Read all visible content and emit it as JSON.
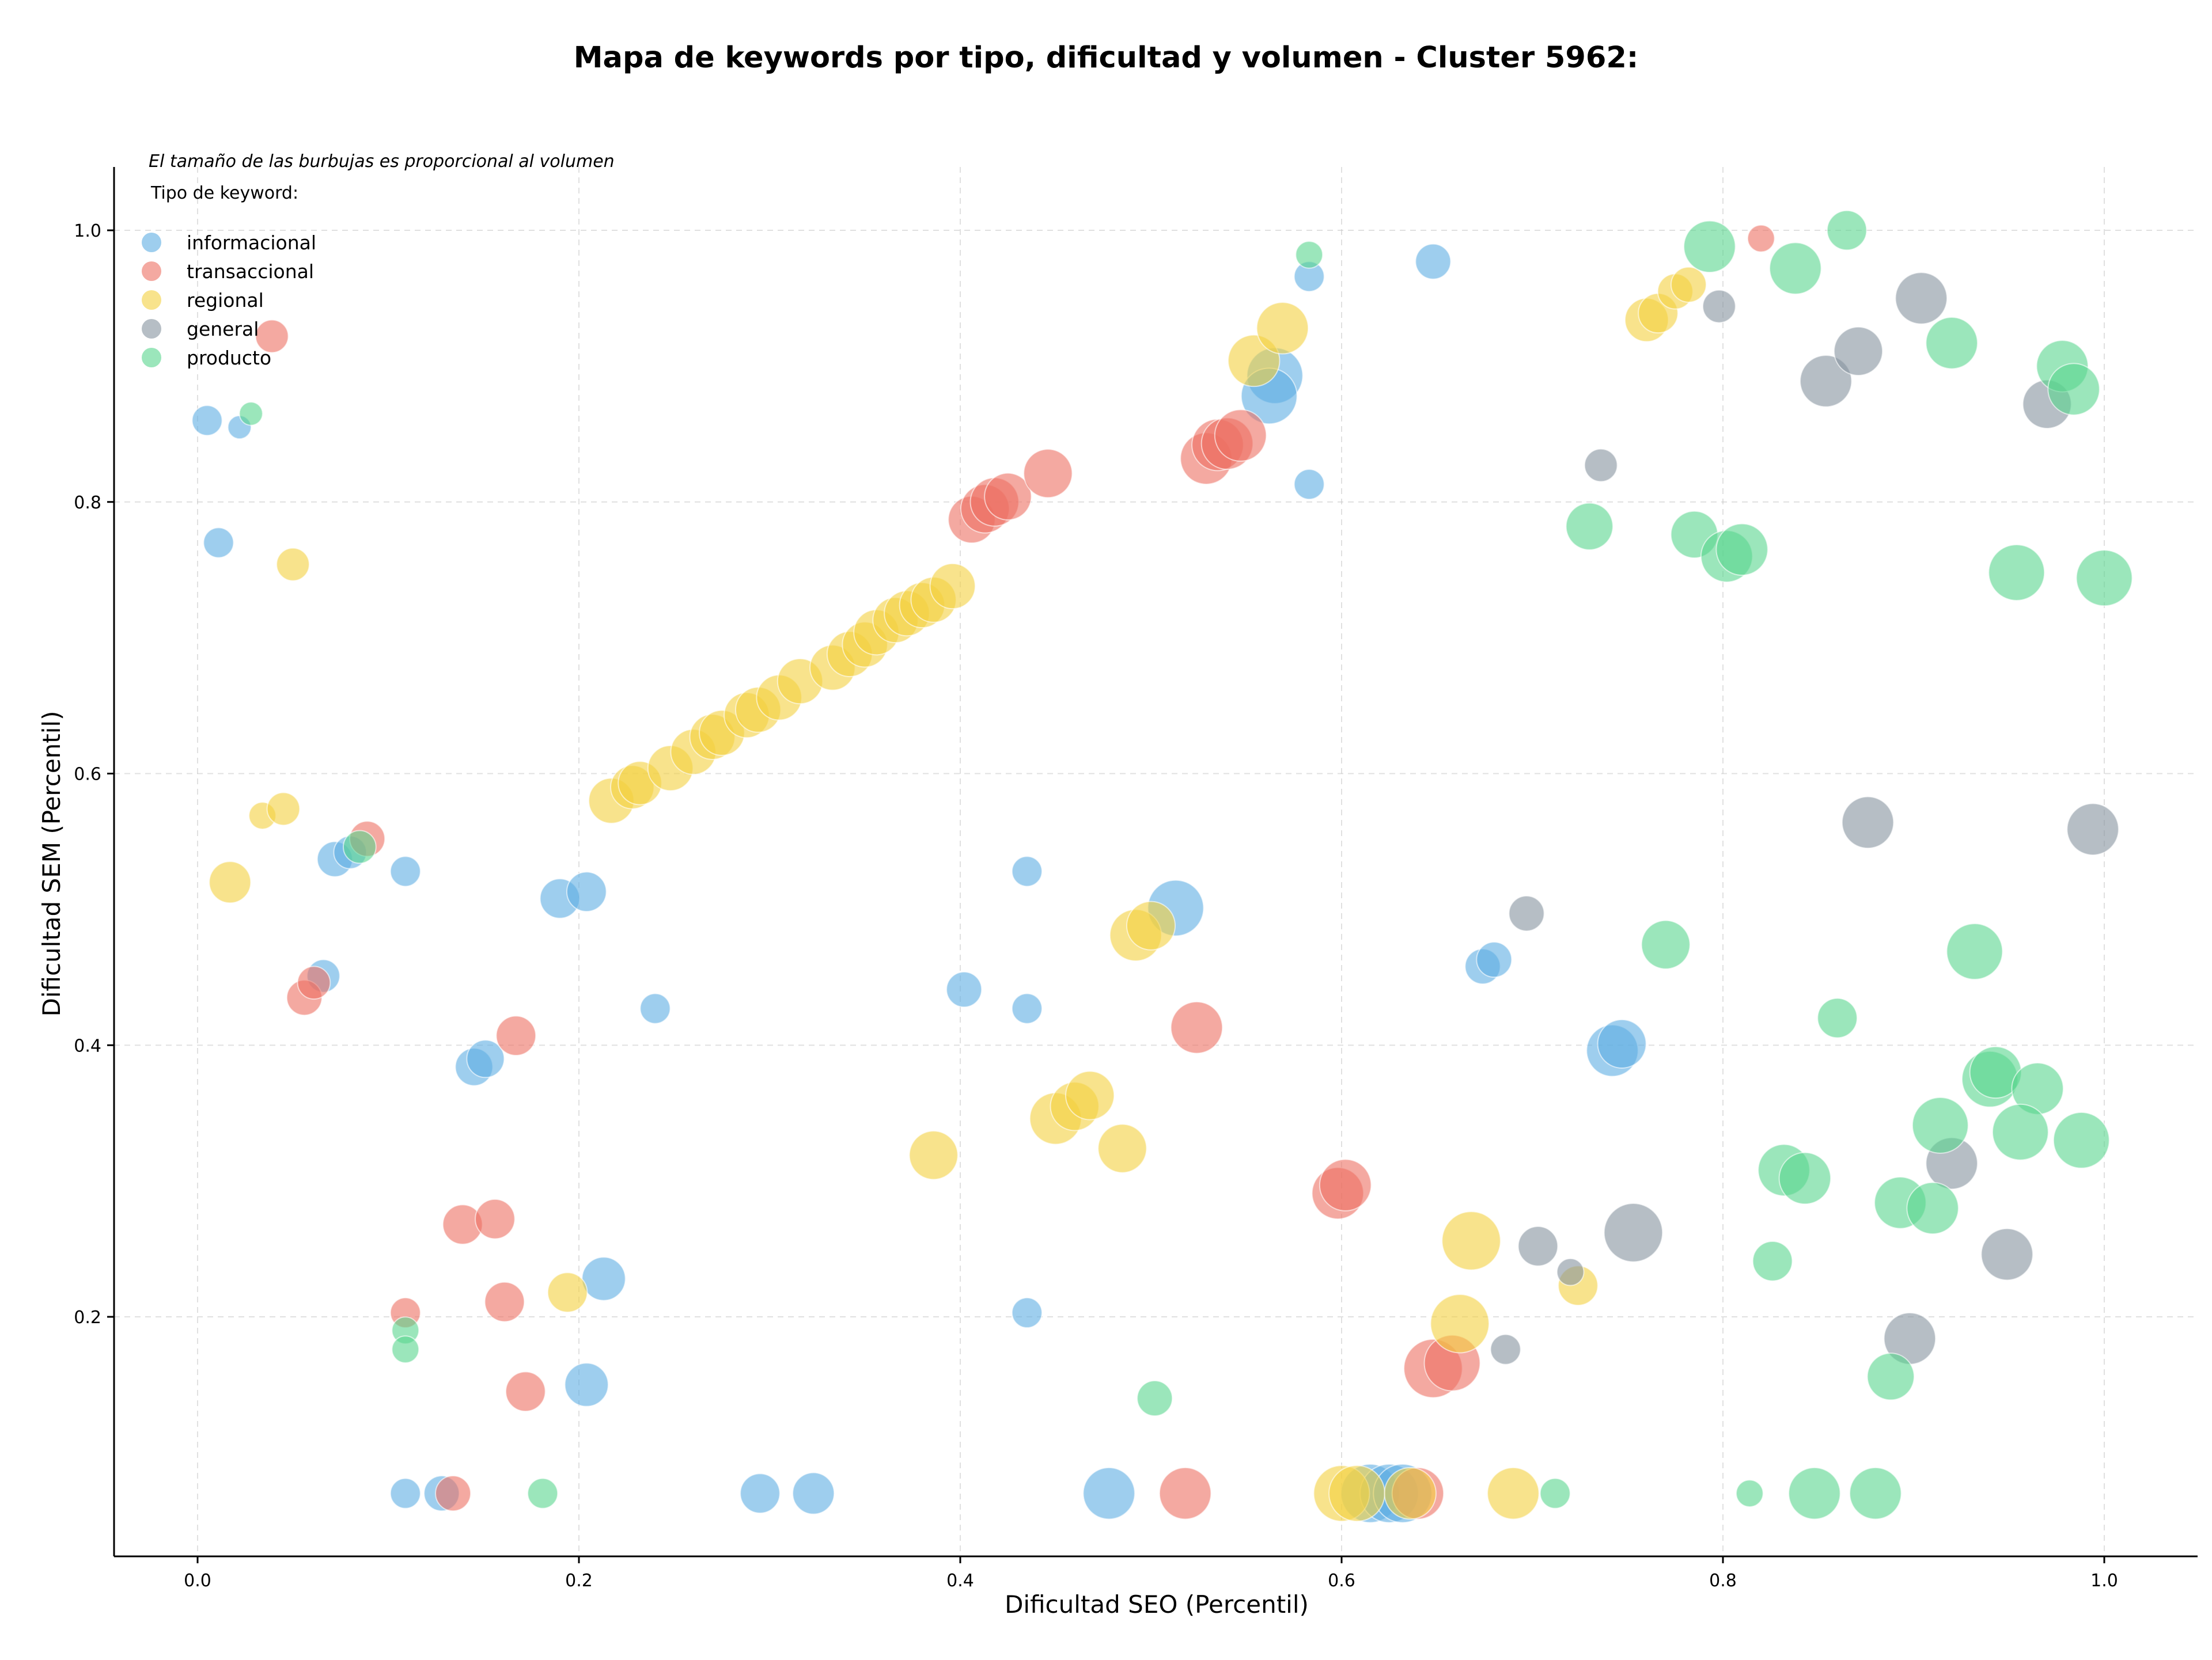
{
  "chart_data": {
    "type": "scatter",
    "title": "Mapa de keywords por tipo, dificultad y volumen - Cluster 5962:",
    "xlabel": "Dificultad SEO (Percentil)",
    "ylabel": "Dificultad SEM (Percentil)",
    "xlim": [
      -0.04,
      1.05
    ],
    "ylim": [
      0.03,
      1.05
    ],
    "xticks": [
      "0.0",
      "0.2",
      "0.4",
      "0.6",
      "0.8",
      "1.0"
    ],
    "yticks": [
      "0.2",
      "0.4",
      "0.6",
      "0.8",
      "1.0"
    ],
    "grid": true,
    "note": "El tamaño de las burbujas es proporcional al volumen",
    "legend": {
      "title": "Tipo de keyword:",
      "placement": "top-left"
    },
    "size_encoding": "volumen",
    "series": [
      {
        "name": "informacional",
        "color": "#5DADE2",
        "points": [
          {
            "x": 0.005,
            "y": 0.86,
            "size": 4
          },
          {
            "x": 0.022,
            "y": 0.855,
            "size": 2
          },
          {
            "x": 0.011,
            "y": 0.77,
            "size": 4
          },
          {
            "x": 0.072,
            "y": 0.537,
            "size": 6
          },
          {
            "x": 0.08,
            "y": 0.542,
            "size": 5
          },
          {
            "x": 0.109,
            "y": 0.528,
            "size": 4
          },
          {
            "x": 0.066,
            "y": 0.451,
            "size": 5
          },
          {
            "x": 0.19,
            "y": 0.508,
            "size": 8
          },
          {
            "x": 0.204,
            "y": 0.513,
            "size": 8
          },
          {
            "x": 0.145,
            "y": 0.384,
            "size": 7
          },
          {
            "x": 0.151,
            "y": 0.39,
            "size": 7
          },
          {
            "x": 0.24,
            "y": 0.427,
            "size": 4
          },
          {
            "x": 0.213,
            "y": 0.228,
            "size": 10
          },
          {
            "x": 0.204,
            "y": 0.15,
            "size": 10
          },
          {
            "x": 0.109,
            "y": 0.07,
            "size": 4
          },
          {
            "x": 0.128,
            "y": 0.07,
            "size": 6
          },
          {
            "x": 0.295,
            "y": 0.07,
            "size": 8
          },
          {
            "x": 0.323,
            "y": 0.07,
            "size": 9
          },
          {
            "x": 0.435,
            "y": 0.528,
            "size": 4
          },
          {
            "x": 0.402,
            "y": 0.441,
            "size": 6
          },
          {
            "x": 0.435,
            "y": 0.427,
            "size": 4
          },
          {
            "x": 0.435,
            "y": 0.203,
            "size": 4
          },
          {
            "x": 0.478,
            "y": 0.07,
            "size": 15
          },
          {
            "x": 0.513,
            "y": 0.501,
            "size": 18
          },
          {
            "x": 0.583,
            "y": 0.966,
            "size": 4
          },
          {
            "x": 0.648,
            "y": 0.977,
            "size": 6
          },
          {
            "x": 0.583,
            "y": 0.813,
            "size": 4
          },
          {
            "x": 0.565,
            "y": 0.893,
            "size": 18
          },
          {
            "x": 0.562,
            "y": 0.878,
            "size": 18
          },
          {
            "x": 0.674,
            "y": 0.458,
            "size": 6
          },
          {
            "x": 0.68,
            "y": 0.463,
            "size": 6
          },
          {
            "x": 0.742,
            "y": 0.396,
            "size": 15
          },
          {
            "x": 0.747,
            "y": 0.401,
            "size": 13
          },
          {
            "x": 0.615,
            "y": 0.07,
            "size": 20
          },
          {
            "x": 0.625,
            "y": 0.07,
            "size": 20
          },
          {
            "x": 0.632,
            "y": 0.07,
            "size": 20
          }
        ]
      },
      {
        "name": "transaccional",
        "color": "#EC7063",
        "points": [
          {
            "x": 0.039,
            "y": 0.922,
            "size": 5
          },
          {
            "x": 0.089,
            "y": 0.552,
            "size": 6
          },
          {
            "x": 0.056,
            "y": 0.435,
            "size": 6
          },
          {
            "x": 0.061,
            "y": 0.446,
            "size": 5
          },
          {
            "x": 0.167,
            "y": 0.407,
            "size": 8
          },
          {
            "x": 0.139,
            "y": 0.268,
            "size": 8
          },
          {
            "x": 0.156,
            "y": 0.272,
            "size": 8
          },
          {
            "x": 0.161,
            "y": 0.211,
            "size": 8
          },
          {
            "x": 0.109,
            "y": 0.203,
            "size": 4
          },
          {
            "x": 0.172,
            "y": 0.145,
            "size": 8
          },
          {
            "x": 0.134,
            "y": 0.07,
            "size": 6
          },
          {
            "x": 0.406,
            "y": 0.787,
            "size": 12
          },
          {
            "x": 0.413,
            "y": 0.795,
            "size": 13
          },
          {
            "x": 0.418,
            "y": 0.8,
            "size": 13
          },
          {
            "x": 0.425,
            "y": 0.804,
            "size": 12
          },
          {
            "x": 0.446,
            "y": 0.821,
            "size": 13
          },
          {
            "x": 0.529,
            "y": 0.832,
            "size": 15
          },
          {
            "x": 0.535,
            "y": 0.842,
            "size": 15
          },
          {
            "x": 0.54,
            "y": 0.843,
            "size": 15
          },
          {
            "x": 0.547,
            "y": 0.849,
            "size": 15
          },
          {
            "x": 0.524,
            "y": 0.413,
            "size": 15
          },
          {
            "x": 0.598,
            "y": 0.291,
            "size": 15
          },
          {
            "x": 0.602,
            "y": 0.297,
            "size": 15
          },
          {
            "x": 0.648,
            "y": 0.162,
            "size": 20
          },
          {
            "x": 0.658,
            "y": 0.166,
            "size": 18
          },
          {
            "x": 0.518,
            "y": 0.07,
            "size": 15
          },
          {
            "x": 0.64,
            "y": 0.07,
            "size": 15
          },
          {
            "x": 0.82,
            "y": 0.994,
            "size": 3
          }
        ]
      },
      {
        "name": "regional",
        "color": "#F4D03F",
        "points": [
          {
            "x": 0.05,
            "y": 0.754,
            "size": 5
          },
          {
            "x": 0.034,
            "y": 0.569,
            "size": 3
          },
          {
            "x": 0.045,
            "y": 0.574,
            "size": 5
          },
          {
            "x": 0.017,
            "y": 0.52,
            "size": 9
          },
          {
            "x": 0.194,
            "y": 0.218,
            "size": 8
          },
          {
            "x": 0.217,
            "y": 0.58,
            "size": 11
          },
          {
            "x": 0.228,
            "y": 0.59,
            "size": 10
          },
          {
            "x": 0.232,
            "y": 0.593,
            "size": 10
          },
          {
            "x": 0.248,
            "y": 0.604,
            "size": 11
          },
          {
            "x": 0.26,
            "y": 0.616,
            "size": 11
          },
          {
            "x": 0.27,
            "y": 0.627,
            "size": 11
          },
          {
            "x": 0.275,
            "y": 0.63,
            "size": 11
          },
          {
            "x": 0.288,
            "y": 0.643,
            "size": 11
          },
          {
            "x": 0.294,
            "y": 0.647,
            "size": 11
          },
          {
            "x": 0.305,
            "y": 0.656,
            "size": 11
          },
          {
            "x": 0.316,
            "y": 0.668,
            "size": 11
          },
          {
            "x": 0.333,
            "y": 0.678,
            "size": 11
          },
          {
            "x": 0.342,
            "y": 0.688,
            "size": 11
          },
          {
            "x": 0.35,
            "y": 0.695,
            "size": 11
          },
          {
            "x": 0.356,
            "y": 0.704,
            "size": 11
          },
          {
            "x": 0.366,
            "y": 0.713,
            "size": 11
          },
          {
            "x": 0.372,
            "y": 0.718,
            "size": 11
          },
          {
            "x": 0.38,
            "y": 0.724,
            "size": 11
          },
          {
            "x": 0.386,
            "y": 0.728,
            "size": 11
          },
          {
            "x": 0.396,
            "y": 0.738,
            "size": 11
          },
          {
            "x": 0.386,
            "y": 0.319,
            "size": 13
          },
          {
            "x": 0.45,
            "y": 0.346,
            "size": 15
          },
          {
            "x": 0.46,
            "y": 0.355,
            "size": 13
          },
          {
            "x": 0.468,
            "y": 0.363,
            "size": 13
          },
          {
            "x": 0.485,
            "y": 0.324,
            "size": 13
          },
          {
            "x": 0.492,
            "y": 0.481,
            "size": 15
          },
          {
            "x": 0.5,
            "y": 0.488,
            "size": 13
          },
          {
            "x": 0.554,
            "y": 0.904,
            "size": 15
          },
          {
            "x": 0.569,
            "y": 0.928,
            "size": 15
          },
          {
            "x": 0.668,
            "y": 0.256,
            "size": 20
          },
          {
            "x": 0.662,
            "y": 0.195,
            "size": 20
          },
          {
            "x": 0.724,
            "y": 0.223,
            "size": 8
          },
          {
            "x": 0.69,
            "y": 0.07,
            "size": 15
          },
          {
            "x": 0.6,
            "y": 0.07,
            "size": 18
          },
          {
            "x": 0.608,
            "y": 0.07,
            "size": 18
          },
          {
            "x": 0.636,
            "y": 0.07,
            "size": 15
          },
          {
            "x": 0.76,
            "y": 0.934,
            "size": 10
          },
          {
            "x": 0.766,
            "y": 0.939,
            "size": 8
          },
          {
            "x": 0.775,
            "y": 0.955,
            "size": 6
          },
          {
            "x": 0.782,
            "y": 0.96,
            "size": 6
          }
        ]
      },
      {
        "name": "general",
        "color": "#85929E",
        "points": [
          {
            "x": 0.736,
            "y": 0.827,
            "size": 5
          },
          {
            "x": 0.798,
            "y": 0.944,
            "size": 5
          },
          {
            "x": 0.854,
            "y": 0.889,
            "size": 15
          },
          {
            "x": 0.871,
            "y": 0.911,
            "size": 13
          },
          {
            "x": 0.904,
            "y": 0.95,
            "size": 15
          },
          {
            "x": 0.97,
            "y": 0.872,
            "size": 13
          },
          {
            "x": 0.876,
            "y": 0.564,
            "size": 15
          },
          {
            "x": 0.994,
            "y": 0.559,
            "size": 15
          },
          {
            "x": 0.697,
            "y": 0.497,
            "size": 6
          },
          {
            "x": 0.92,
            "y": 0.313,
            "size": 15
          },
          {
            "x": 0.753,
            "y": 0.262,
            "size": 20
          },
          {
            "x": 0.703,
            "y": 0.252,
            "size": 8
          },
          {
            "x": 0.949,
            "y": 0.246,
            "size": 15
          },
          {
            "x": 0.72,
            "y": 0.233,
            "size": 3
          },
          {
            "x": 0.898,
            "y": 0.184,
            "size": 15
          },
          {
            "x": 0.686,
            "y": 0.176,
            "size": 4
          }
        ]
      },
      {
        "name": "producto",
        "color": "#58D68D",
        "points": [
          {
            "x": 0.028,
            "y": 0.865,
            "size": 2
          },
          {
            "x": 0.085,
            "y": 0.546,
            "size": 5
          },
          {
            "x": 0.109,
            "y": 0.19,
            "size": 3
          },
          {
            "x": 0.109,
            "y": 0.176,
            "size": 3
          },
          {
            "x": 0.181,
            "y": 0.07,
            "size": 4
          },
          {
            "x": 0.502,
            "y": 0.14,
            "size": 6
          },
          {
            "x": 0.583,
            "y": 0.982,
            "size": 3
          },
          {
            "x": 0.712,
            "y": 0.07,
            "size": 4
          },
          {
            "x": 0.73,
            "y": 0.782,
            "size": 12
          },
          {
            "x": 0.785,
            "y": 0.776,
            "size": 12
          },
          {
            "x": 0.802,
            "y": 0.76,
            "size": 15
          },
          {
            "x": 0.81,
            "y": 0.765,
            "size": 15
          },
          {
            "x": 0.793,
            "y": 0.988,
            "size": 15
          },
          {
            "x": 0.838,
            "y": 0.972,
            "size": 15
          },
          {
            "x": 0.865,
            "y": 1.0,
            "size": 8
          },
          {
            "x": 0.92,
            "y": 0.917,
            "size": 15
          },
          {
            "x": 0.978,
            "y": 0.9,
            "size": 15
          },
          {
            "x": 0.984,
            "y": 0.883,
            "size": 15
          },
          {
            "x": 0.954,
            "y": 0.748,
            "size": 18
          },
          {
            "x": 1.0,
            "y": 0.744,
            "size": 18
          },
          {
            "x": 0.77,
            "y": 0.474,
            "size": 13
          },
          {
            "x": 0.86,
            "y": 0.42,
            "size": 8
          },
          {
            "x": 0.932,
            "y": 0.469,
            "size": 18
          },
          {
            "x": 0.94,
            "y": 0.375,
            "size": 18
          },
          {
            "x": 0.943,
            "y": 0.38,
            "size": 15
          },
          {
            "x": 0.965,
            "y": 0.368,
            "size": 15
          },
          {
            "x": 0.914,
            "y": 0.341,
            "size": 18
          },
          {
            "x": 0.956,
            "y": 0.336,
            "size": 18
          },
          {
            "x": 0.988,
            "y": 0.33,
            "size": 18
          },
          {
            "x": 0.832,
            "y": 0.308,
            "size": 15
          },
          {
            "x": 0.843,
            "y": 0.302,
            "size": 15
          },
          {
            "x": 0.893,
            "y": 0.284,
            "size": 15
          },
          {
            "x": 0.91,
            "y": 0.28,
            "size": 15
          },
          {
            "x": 0.826,
            "y": 0.241,
            "size": 8
          },
          {
            "x": 0.888,
            "y": 0.156,
            "size": 12
          },
          {
            "x": 0.814,
            "y": 0.07,
            "size": 3
          },
          {
            "x": 0.848,
            "y": 0.07,
            "size": 15
          },
          {
            "x": 0.88,
            "y": 0.07,
            "size": 15
          }
        ]
      }
    ]
  }
}
